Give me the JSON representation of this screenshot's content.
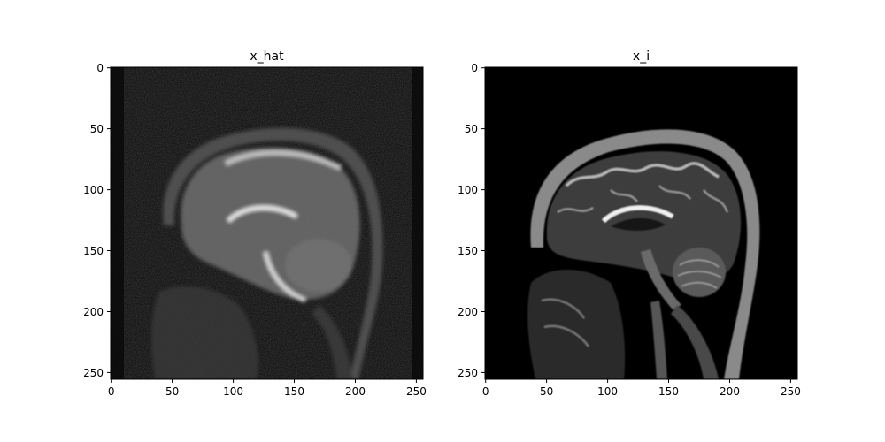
{
  "panels": [
    {
      "title": "x_hat",
      "x_ticks": [
        "0",
        "50",
        "100",
        "150",
        "200",
        "250"
      ],
      "y_ticks": [
        "0",
        "50",
        "100",
        "150",
        "200",
        "250"
      ],
      "xlim": [
        0,
        255
      ],
      "ylim": [
        0,
        255
      ],
      "image_description": "noisy low-contrast sagittal brain MRI reconstruction"
    },
    {
      "title": "x_i",
      "x_ticks": [
        "0",
        "50",
        "100",
        "150",
        "200",
        "250"
      ],
      "y_ticks": [
        "0",
        "50",
        "100",
        "150",
        "200",
        "250"
      ],
      "xlim": [
        0,
        255
      ],
      "ylim": [
        0,
        255
      ],
      "image_description": "sharp sagittal T2-weighted brain MRI"
    }
  ],
  "colors": {
    "background": "#ffffff",
    "image_black": "#000000",
    "axis": "#000000"
  }
}
